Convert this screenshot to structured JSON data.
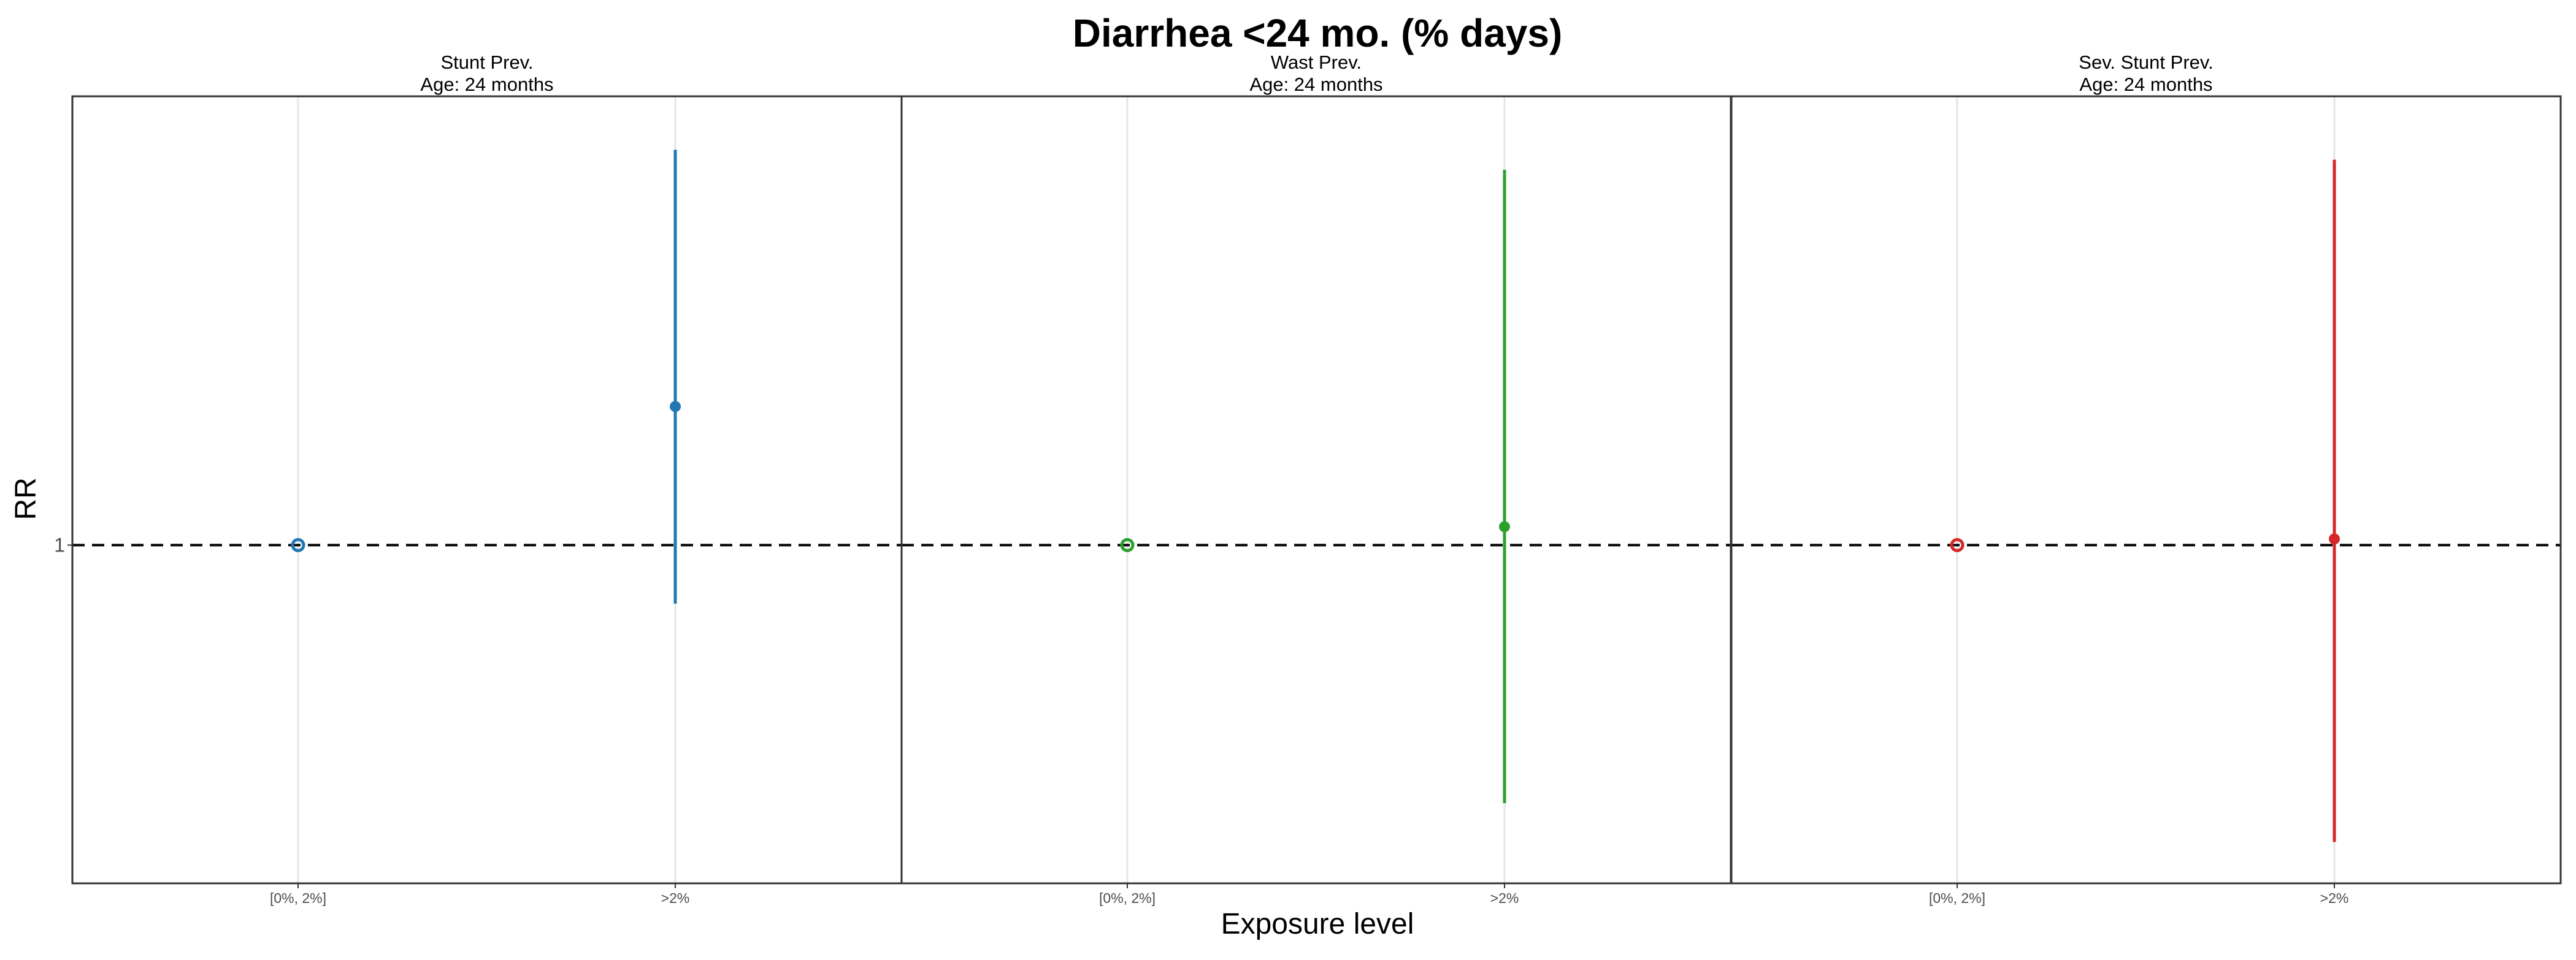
{
  "chart_data": {
    "type": "scatter",
    "title": "Diarrhea <24 mo.  (% days)",
    "xlabel": "Exposure level",
    "ylabel": "RR",
    "y_scale": "log",
    "y_ticks": [
      1
    ],
    "y_tick_labels": [
      "1"
    ],
    "ylim": [
      0.58,
      2.06
    ],
    "grid": true,
    "reference_line": {
      "y": 1,
      "style": "dashed"
    },
    "categories": [
      "[0%, 2%]",
      ">2%"
    ],
    "panels": [
      {
        "strip_title": "Stunt Prev.",
        "strip_subtitle": "Age: 24 months",
        "color": "#1f77b4",
        "points": [
          {
            "x": "[0%, 2%]",
            "estimate": 1.0,
            "reference": true
          },
          {
            "x": ">2%",
            "estimate": 1.25,
            "ci_lower": 0.91,
            "ci_upper": 1.89
          }
        ]
      },
      {
        "strip_title": "Wast Prev.",
        "strip_subtitle": "Age: 24 months",
        "color": "#2ca02c",
        "points": [
          {
            "x": "[0%, 2%]",
            "estimate": 1.0,
            "reference": true
          },
          {
            "x": ">2%",
            "estimate": 1.03,
            "ci_lower": 0.66,
            "ci_upper": 1.83
          }
        ]
      },
      {
        "strip_title": "Sev. Stunt Prev.",
        "strip_subtitle": "Age: 24 months",
        "color": "#d62728",
        "points": [
          {
            "x": "[0%, 2%]",
            "estimate": 1.0,
            "reference": true
          },
          {
            "x": ">2%",
            "estimate": 1.01,
            "ci_lower": 0.62,
            "ci_upper": 1.86
          }
        ]
      }
    ]
  }
}
